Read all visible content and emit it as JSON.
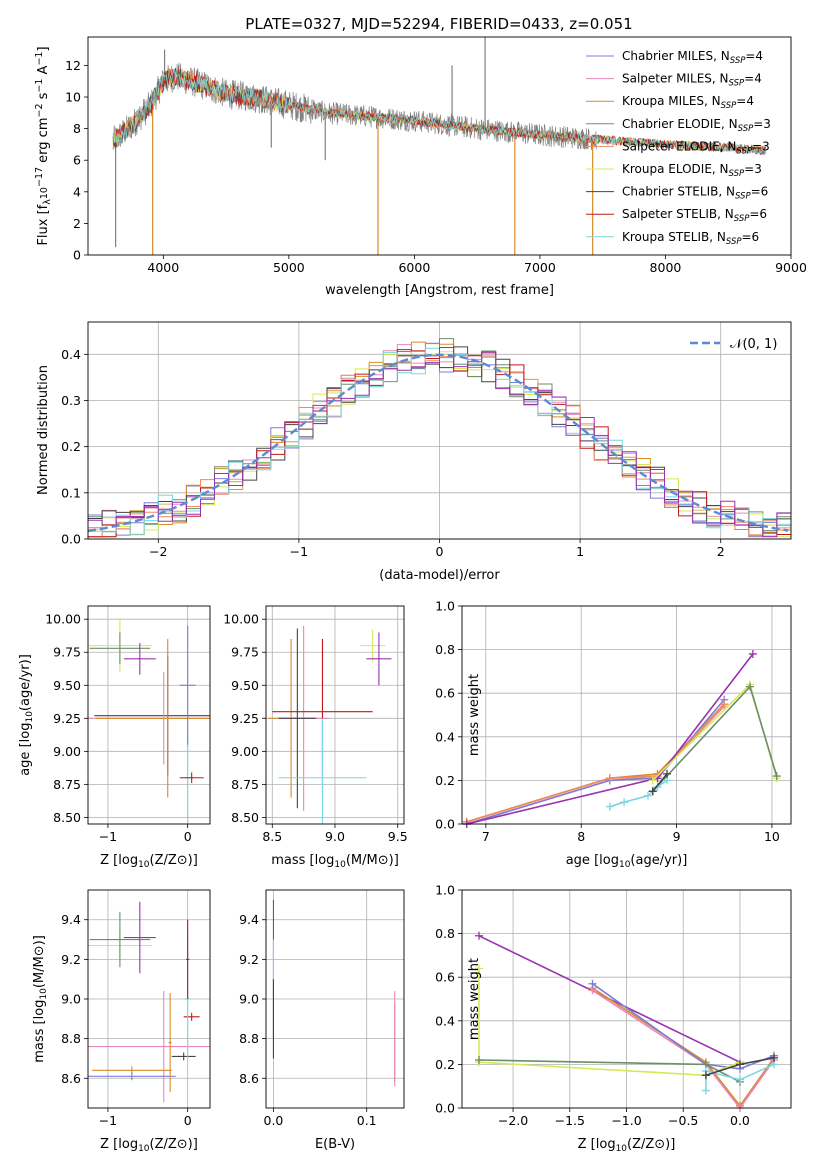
{
  "figure_title": "PLATE=0327, MJD=52294, FIBERID=0433, z=0.051",
  "colors": {
    "Chabrier MILES": "#7b7fd6",
    "Salpeter MILES": "#e987b8",
    "Kroupa MILES": "#d98a2a",
    "Chabrier ELODIE": "#6b8f6b",
    "Salpeter ELODIE": "#f08a5d",
    "Kroupa ELODIE": "#d6e85a",
    "Chabrier STELIB": "#444444",
    "Salpeter STELIB": "#c0181a",
    "Kroupa STELIB": "#7ad7e0",
    "data": "#808080",
    "normal": "#5b8bd6",
    "purple": "#9b30b0"
  },
  "chart_data": [
    {
      "id": "spectrum",
      "type": "line",
      "title": "PLATE=0327, MJD=52294, FIBERID=0433, z=0.051",
      "xlabel": "wavelength [Angstrom, rest frame]",
      "ylabel": "Flux [f_λ10^-17 erg cm^-2 s^-1 A^-1]",
      "xlim": [
        3400,
        9000
      ],
      "ylim": [
        0,
        13.8
      ],
      "xticks": [
        4000,
        5000,
        6000,
        7000,
        8000,
        9000
      ],
      "yticks": [
        0,
        2,
        4,
        6,
        8,
        10,
        12
      ],
      "legend_position": "top-right",
      "legend": [
        {
          "label": "Chabrier MILES, N",
          "sub": "SSP",
          "suffix": "=4"
        },
        {
          "label": "Salpeter MILES, N",
          "sub": "SSP",
          "suffix": "=4"
        },
        {
          "label": "Kroupa MILES, N",
          "sub": "SSP",
          "suffix": "=4"
        },
        {
          "label": "Chabrier ELODIE, N",
          "sub": "SSP",
          "suffix": "=3"
        },
        {
          "label": "Salpeter ELODIE, N",
          "sub": "SSP",
          "suffix": "=3"
        },
        {
          "label": "Kroupa ELODIE, N",
          "sub": "SSP",
          "suffix": "=3"
        },
        {
          "label": "Chabrier STELIB, N",
          "sub": "SSP",
          "suffix": "=6"
        },
        {
          "label": "Salpeter STELIB, N",
          "sub": "SSP",
          "suffix": "=6"
        },
        {
          "label": "Kroupa STELIB, N",
          "sub": "SSP",
          "suffix": "=6"
        }
      ],
      "continuum": [
        [
          3600,
          7.2
        ],
        [
          3750,
          8.2
        ],
        [
          3900,
          9.5
        ],
        [
          4000,
          11.0
        ],
        [
          4100,
          11.3
        ],
        [
          4300,
          10.8
        ],
        [
          4500,
          10.2
        ],
        [
          4700,
          10.0
        ],
        [
          5000,
          9.5
        ],
        [
          5300,
          9.0
        ],
        [
          5600,
          8.8
        ],
        [
          6000,
          8.5
        ],
        [
          6500,
          8.0
        ],
        [
          7000,
          7.6
        ],
        [
          7500,
          7.3
        ],
        [
          8000,
          7.0
        ],
        [
          8500,
          6.8
        ],
        [
          8800,
          6.6
        ]
      ],
      "model_range": [
        3600,
        8800
      ],
      "data_range": [
        3600,
        7450
      ],
      "spikes": [
        {
          "x": 3620,
          "y": 0.5
        },
        {
          "x": 3915,
          "y": 0.0
        },
        {
          "x": 4010,
          "y": 13.0
        },
        {
          "x": 4860,
          "y": 6.8
        },
        {
          "x": 5290,
          "y": 6.0
        },
        {
          "x": 5710,
          "y": 0.0
        },
        {
          "x": 6300,
          "y": 12.0
        },
        {
          "x": 6563,
          "y": 13.8
        },
        {
          "x": 6800,
          "y": 0.0
        },
        {
          "x": 7420,
          "y": 0.0
        }
      ]
    },
    {
      "id": "residuals",
      "type": "step",
      "xlabel": "(data-model)/error",
      "ylabel": "Normed distribution",
      "xlim": [
        -2.5,
        2.5
      ],
      "ylim": [
        0,
        0.47
      ],
      "xticks": [
        -2,
        -1,
        0,
        1,
        2
      ],
      "yticks": [
        0.0,
        0.1,
        0.2,
        0.3,
        0.4
      ],
      "grid": true,
      "legend_position": "top-right",
      "legend": [
        {
          "label": "𝒩(0, 1)"
        }
      ],
      "bin_width": 0.1
    },
    {
      "id": "age-vs-Z",
      "type": "errorbar",
      "xlabel": "Z [log10(Z/Z⊙)]",
      "ylabel": "age  [log10(age/yr)]",
      "xlim": [
        -1.25,
        0.28
      ],
      "ylim": [
        8.45,
        10.1
      ],
      "xticks": [
        -1,
        0
      ],
      "yticks": [
        8.5,
        8.75,
        9.0,
        9.25,
        9.5,
        9.75,
        10.0
      ],
      "grid": true,
      "points": [
        {
          "series": "Kroupa ELODIE",
          "x": -0.85,
          "xerr": 0.4,
          "y": 9.8,
          "yerr": 0.2
        },
        {
          "series": "Chabrier ELODIE",
          "x": -0.85,
          "xerr": 0.38,
          "y": 9.78,
          "yerr": 0.12
        },
        {
          "series": "purple",
          "x": -0.6,
          "xerr": 0.2,
          "y": 9.7,
          "yerr": 0.12
        },
        {
          "series": "Chabrier STELIB",
          "x": -0.25,
          "xerr": 0.92,
          "y": 9.27,
          "yerr": 0.45
        },
        {
          "series": "Salpeter MILES",
          "x": -0.3,
          "xerr": 0.95,
          "y": 9.25,
          "yerr": 0.35
        },
        {
          "series": "Kroupa MILES",
          "x": -0.25,
          "xerr": 0.9,
          "y": 9.25,
          "yerr": 0.6
        },
        {
          "series": "Kroupa STELIB",
          "x": 0.0,
          "xerr": 0.08,
          "y": 8.8,
          "yerr": 0.35
        },
        {
          "series": "Salpeter STELIB",
          "x": 0.05,
          "xerr": 0.15,
          "y": 8.8,
          "yerr": 0.04
        },
        {
          "series": "Chabrier MILES",
          "x": 0.0,
          "xerr": 0.1,
          "y": 9.5,
          "yerr": 0.45
        }
      ]
    },
    {
      "id": "age-vs-mass",
      "type": "errorbar",
      "xlabel": "mass [log10(M/M⊙)]",
      "ylabel": "",
      "xlim": [
        8.45,
        9.55
      ],
      "ylim": [
        8.45,
        10.1
      ],
      "xticks": [
        8.5,
        9.0,
        9.5
      ],
      "yticks": [
        8.5,
        8.75,
        9.0,
        9.25,
        9.5,
        9.75,
        10.0
      ],
      "grid": true,
      "points": [
        {
          "series": "Kroupa ELODIE",
          "x": 9.3,
          "xerr": 0.1,
          "y": 9.8,
          "yerr": 0.12
        },
        {
          "series": "purple",
          "x": 9.35,
          "xerr": 0.1,
          "y": 9.7,
          "yerr": 0.2
        },
        {
          "series": "Kroupa MILES",
          "x": 8.65,
          "xerr": 0.18,
          "y": 9.25,
          "yerr": 0.6
        },
        {
          "series": "Salpeter MILES",
          "x": 8.75,
          "xerr": 0.2,
          "y": 9.25,
          "yerr": 0.7
        },
        {
          "series": "Chabrier STELIB",
          "x": 8.7,
          "xerr": 0.15,
          "y": 9.25,
          "yerr": 0.68
        },
        {
          "series": "Salpeter STELIB",
          "x": 8.9,
          "xerr": 0.4,
          "y": 9.3,
          "yerr": 0.55
        },
        {
          "series": "Kroupa STELIB",
          "x": 8.9,
          "xerr": 0.35,
          "y": 8.8,
          "yerr": 0.45
        }
      ]
    },
    {
      "id": "weight-vs-age",
      "type": "line",
      "xlabel": "age  [log10(age/yr)]",
      "ylabel": "mass weight",
      "xlim": [
        6.75,
        10.2
      ],
      "ylim": [
        0,
        1.0
      ],
      "xticks": [
        7,
        8,
        9,
        10
      ],
      "yticks": [
        0.0,
        0.2,
        0.4,
        0.6,
        0.8,
        1.0
      ],
      "grid": true,
      "series": [
        {
          "name": "Kroupa MILES",
          "x": [
            6.8,
            8.3,
            8.8,
            9.5
          ],
          "y": [
            0.01,
            0.21,
            0.23,
            0.55
          ]
        },
        {
          "name": "Salpeter MILES",
          "x": [
            6.8,
            8.3,
            8.8,
            9.5
          ],
          "y": [
            0.0,
            0.2,
            0.22,
            0.54
          ]
        },
        {
          "name": "Chabrier MILES",
          "x": [
            6.8,
            8.3,
            8.8,
            9.5
          ],
          "y": [
            0.0,
            0.2,
            0.21,
            0.57
          ]
        },
        {
          "name": "Salpeter ELODIE",
          "x": [
            6.8,
            8.3,
            8.8,
            9.5
          ],
          "y": [
            0.01,
            0.21,
            0.22,
            0.55
          ]
        },
        {
          "name": "purple",
          "x": [
            6.8,
            8.8,
            9.8
          ],
          "y": [
            0.0,
            0.21,
            0.78
          ]
        },
        {
          "name": "Kroupa ELODIE",
          "x": [
            8.75,
            9.77,
            10.05
          ],
          "y": [
            0.2,
            0.64,
            0.21
          ]
        },
        {
          "name": "Chabrier ELODIE",
          "x": [
            8.75,
            9.77,
            10.05
          ],
          "y": [
            0.15,
            0.63,
            0.22
          ]
        },
        {
          "name": "Kroupa STELIB",
          "x": [
            8.3,
            8.45,
            8.7,
            8.8,
            8.9
          ],
          "y": [
            0.08,
            0.1,
            0.13,
            0.17,
            0.2
          ]
        },
        {
          "name": "Chabrier STELIB",
          "x": [
            8.75,
            8.9
          ],
          "y": [
            0.15,
            0.23
          ]
        }
      ]
    },
    {
      "id": "mass-vs-Z",
      "type": "errorbar",
      "xlabel": "Z [log10(Z/Z⊙)]",
      "ylabel": "mass [log10(M/M⊙)]",
      "xlim": [
        -1.25,
        0.28
      ],
      "ylim": [
        8.45,
        9.55
      ],
      "xticks": [
        -1,
        0
      ],
      "yticks": [
        8.6,
        8.8,
        9.0,
        9.2,
        9.4
      ],
      "grid": true,
      "points": [
        {
          "series": "Kroupa ELODIE",
          "x": -0.85,
          "xerr": 0.4,
          "y": 9.27,
          "yerr": 0.08
        },
        {
          "series": "Chabrier ELODIE",
          "x": -0.85,
          "xerr": 0.38,
          "y": 9.3,
          "yerr": 0.14
        },
        {
          "series": "purple",
          "x": -0.6,
          "xerr": 0.2,
          "y": 9.31,
          "yerr": 0.18
        },
        {
          "series": "Salpeter MILES",
          "x": -0.3,
          "xerr": 0.95,
          "y": 8.76,
          "yerr": 0.28
        },
        {
          "series": "Kroupa MILES",
          "x": -0.7,
          "xerr": 0.5,
          "y": 8.64,
          "yerr": 0.02
        },
        {
          "series": "Chabrier MILES",
          "x": -0.7,
          "xerr": 0.55,
          "y": 8.61,
          "yerr": 0.02
        },
        {
          "series": "Salpeter STELIB",
          "x": 0.05,
          "xerr": 0.1,
          "y": 8.91,
          "yerr": 0.02
        },
        {
          "series": "Chabrier STELIB",
          "x": -0.05,
          "xerr": 0.15,
          "y": 8.71,
          "yerr": 0.02
        },
        {
          "series": "Kroupa STELIB",
          "x": 0.0,
          "xerr": 0.05,
          "y": 9.0,
          "yerr": 0.3
        },
        {
          "series": "Salpeter STELIB",
          "x": 0.0,
          "xerr": 0.02,
          "y": 9.2,
          "yerr": 0.2
        },
        {
          "series": "Kroupa MILES",
          "x": -0.22,
          "xerr": 0.02,
          "y": 8.78,
          "yerr": 0.25
        }
      ]
    },
    {
      "id": "mass-vs-ebv",
      "type": "errorbar",
      "xlabel": "E(B-V)",
      "ylabel": "",
      "xlim": [
        -0.008,
        0.14
      ],
      "ylim": [
        8.45,
        9.55
      ],
      "xticks": [
        0.0,
        0.1
      ],
      "yticks": [
        8.6,
        8.8,
        9.0,
        9.2,
        9.4
      ],
      "grid": true,
      "points": [
        {
          "series": "purple",
          "x": 0.0,
          "xerr": 0.0,
          "y": 9.15,
          "yerr": 0.35
        },
        {
          "series": "Kroupa STELIB",
          "x": 0.0,
          "xerr": 0.0,
          "y": 9.0,
          "yerr": 0.3
        },
        {
          "series": "Chabrier STELIB",
          "x": 0.0,
          "xerr": 0.0,
          "y": 8.9,
          "yerr": 0.2
        },
        {
          "series": "Kroupa MILES",
          "x": 0.13,
          "xerr": 0.0,
          "y": 8.78,
          "yerr": 0.2
        },
        {
          "series": "Salpeter MILES",
          "x": 0.13,
          "xerr": 0.0,
          "y": 8.8,
          "yerr": 0.24
        }
      ]
    },
    {
      "id": "weight-vs-Z",
      "type": "line",
      "xlabel": "Z [log10(Z/Z⊙)]",
      "ylabel": "mass weight",
      "xlim": [
        -2.45,
        0.45
      ],
      "ylim": [
        0,
        1.0
      ],
      "xticks": [
        -2.0,
        -1.5,
        -1.0,
        -0.5,
        0.0
      ],
      "yticks": [
        0.0,
        0.2,
        0.4,
        0.6,
        0.8,
        1.0
      ],
      "grid": true,
      "series": [
        {
          "name": "purple",
          "x": [
            -2.3,
            0.0
          ],
          "y": [
            0.79,
            0.21
          ]
        },
        {
          "name": "Kroupa MILES",
          "x": [
            -1.3,
            -0.3,
            0.0,
            0.3
          ],
          "y": [
            0.55,
            0.21,
            0.01,
            0.23
          ]
        },
        {
          "name": "Salpeter MILES",
          "x": [
            -1.3,
            -0.3,
            0.0,
            0.3
          ],
          "y": [
            0.54,
            0.2,
            0.0,
            0.22
          ]
        },
        {
          "name": "Chabrier MILES",
          "x": [
            -1.3,
            -0.3,
            0.0,
            0.3
          ],
          "y": [
            0.57,
            0.2,
            0.18,
            0.24
          ]
        },
        {
          "name": "Kroupa ELODIE",
          "x": [
            -2.3,
            -2.3,
            -0.3,
            0.0
          ],
          "y": [
            0.64,
            0.21,
            0.15,
            0.21
          ]
        },
        {
          "name": "Chabrier ELODIE",
          "x": [
            -2.3,
            -0.3,
            0.0
          ],
          "y": [
            0.22,
            0.2,
            0.12
          ]
        },
        {
          "name": "Kroupa STELIB",
          "x": [
            -0.3,
            -0.3,
            0.0,
            0.3
          ],
          "y": [
            0.08,
            0.17,
            0.13,
            0.2
          ]
        },
        {
          "name": "Chabrier STELIB",
          "x": [
            -0.3,
            0.0,
            0.3
          ],
          "y": [
            0.15,
            0.2,
            0.23
          ]
        }
      ]
    }
  ]
}
